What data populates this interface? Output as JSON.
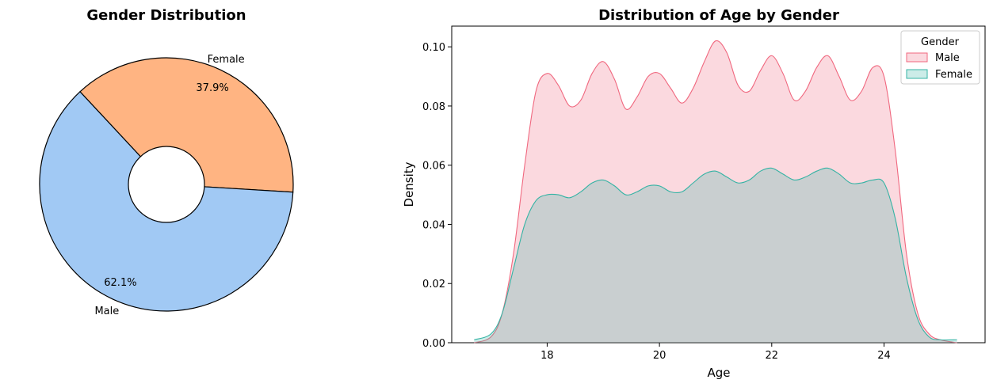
{
  "colors": {
    "male_pie": "#a1c9f4",
    "female_pie": "#ffb482",
    "male_kde": "#f0687f",
    "female_kde": "#34b3a4"
  },
  "chart_data": [
    {
      "type": "pie",
      "title": "Gender Distribution",
      "categories": [
        "Female",
        "Male"
      ],
      "values": [
        37.9,
        62.1
      ],
      "value_labels": [
        "37.9%",
        "62.1%"
      ],
      "donut": true
    },
    {
      "type": "area",
      "title": "Distribution of Age by Gender",
      "xlabel": "Age",
      "ylabel": "Density",
      "xlim": [
        16.3,
        25.8
      ],
      "ylim": [
        0.0,
        0.107
      ],
      "xticks": [
        "18",
        "20",
        "22",
        "24"
      ],
      "yticks": [
        "0.00",
        "0.02",
        "0.04",
        "0.06",
        "0.08",
        "0.10"
      ],
      "legend": {
        "title": "Gender",
        "placement": "top-right"
      },
      "series": [
        {
          "name": "Male",
          "x": [
            16.7,
            17.0,
            17.2,
            17.4,
            17.6,
            17.8,
            18.0,
            18.2,
            18.4,
            18.6,
            18.8,
            19.0,
            19.2,
            19.4,
            19.6,
            19.8,
            20.0,
            20.2,
            20.4,
            20.6,
            20.8,
            21.0,
            21.2,
            21.4,
            21.6,
            21.8,
            22.0,
            22.2,
            22.4,
            22.6,
            22.8,
            23.0,
            23.2,
            23.4,
            23.6,
            23.8,
            24.0,
            24.2,
            24.4,
            24.6,
            24.8,
            25.0,
            25.3
          ],
          "y": [
            0.0,
            0.002,
            0.01,
            0.03,
            0.06,
            0.085,
            0.091,
            0.087,
            0.08,
            0.082,
            0.091,
            0.095,
            0.089,
            0.079,
            0.083,
            0.09,
            0.091,
            0.086,
            0.081,
            0.086,
            0.095,
            0.102,
            0.098,
            0.087,
            0.085,
            0.092,
            0.097,
            0.091,
            0.082,
            0.085,
            0.093,
            0.097,
            0.09,
            0.082,
            0.085,
            0.093,
            0.09,
            0.065,
            0.03,
            0.01,
            0.003,
            0.001,
            0.0
          ]
        },
        {
          "name": "Female",
          "x": [
            16.7,
            17.0,
            17.2,
            17.4,
            17.6,
            17.8,
            18.0,
            18.2,
            18.4,
            18.6,
            18.8,
            19.0,
            19.2,
            19.4,
            19.6,
            19.8,
            20.0,
            20.2,
            20.4,
            20.6,
            20.8,
            21.0,
            21.2,
            21.4,
            21.6,
            21.8,
            22.0,
            22.2,
            22.4,
            22.6,
            22.8,
            23.0,
            23.2,
            23.4,
            23.6,
            23.8,
            24.0,
            24.2,
            24.4,
            24.6,
            24.8,
            25.0,
            25.3
          ],
          "y": [
            0.001,
            0.003,
            0.01,
            0.025,
            0.04,
            0.048,
            0.05,
            0.05,
            0.049,
            0.051,
            0.054,
            0.055,
            0.053,
            0.05,
            0.051,
            0.053,
            0.053,
            0.051,
            0.051,
            0.054,
            0.057,
            0.058,
            0.056,
            0.054,
            0.055,
            0.058,
            0.059,
            0.057,
            0.055,
            0.056,
            0.058,
            0.059,
            0.057,
            0.054,
            0.054,
            0.055,
            0.054,
            0.042,
            0.022,
            0.008,
            0.002,
            0.001,
            0.001
          ]
        }
      ]
    }
  ]
}
